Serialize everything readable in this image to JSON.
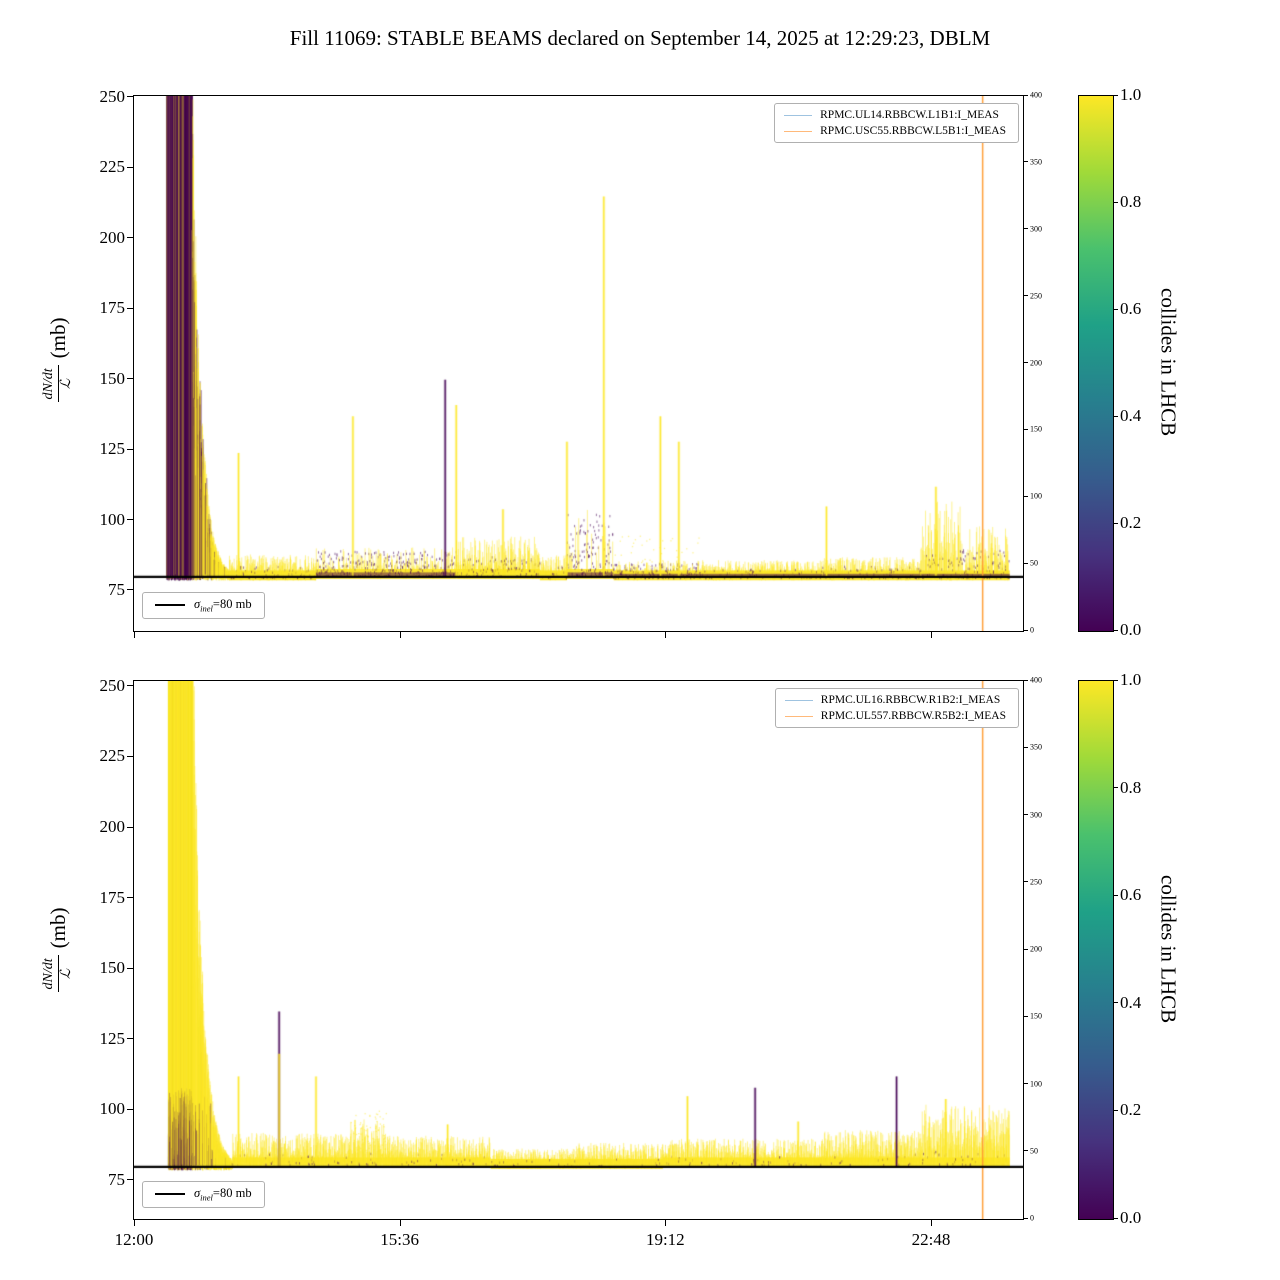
{
  "title": "Fill 11069: STABLE BEAMS declared on September 14, 2025 at 12:29:23, DBLM",
  "ylabel": {
    "numerator": "dN/dt",
    "denominator": "ℒ",
    "unit": "(mb)"
  },
  "colorbar": {
    "label": "collides in LHCB",
    "colormap_stops": [
      "#440154",
      "#46327e",
      "#365c8d",
      "#277f8e",
      "#1fa187",
      "#4ac16d",
      "#a0da39",
      "#fde725"
    ]
  },
  "panels": [
    {
      "legend": [
        {
          "label": "RPMC.UL14.RBBCW.L1B1:I_MEAS"
        },
        {
          "label": "RPMC.USC55.RBBCW.L5B1:I_MEAS"
        }
      ],
      "sigma_legend": {
        "symbol": "σ",
        "sub": "inel",
        "rest": "=80 mb"
      }
    },
    {
      "legend": [
        {
          "label": "RPMC.UL16.RBBCW.R1B2:I_MEAS"
        },
        {
          "label": "RPMC.UL557.RBBCW.R5B2:I_MEAS"
        }
      ],
      "sigma_legend": {
        "symbol": "σ",
        "sub": "inel",
        "rest": "=80 mb"
      }
    }
  ],
  "chart_data": [
    {
      "type": "scatter",
      "panel": "top",
      "x_axis": {
        "range_minutes": [
          0,
          722.8
        ],
        "tick_minutes": [
          0,
          216,
          432,
          648
        ],
        "tick_labels": [
          "12:00",
          "15:36",
          "19:12",
          "22:48"
        ]
      },
      "y_axis": {
        "label": "dN/dt / ℒ (mb)",
        "range": [
          60.8,
          250.7
        ],
        "tick_values": [
          75,
          100,
          125,
          150,
          175,
          200,
          225,
          250
        ]
      },
      "right_axis": {
        "range": [
          0,
          400
        ],
        "tick_values": [
          0,
          50,
          100,
          150,
          200,
          250,
          300,
          350,
          400
        ]
      },
      "color_scale": {
        "label": "collides in LHCB",
        "range": [
          0,
          1
        ],
        "tick_values": [
          0,
          0.2,
          0.4,
          0.6,
          0.8,
          1
        ],
        "colormap": "viridis"
      },
      "series": [
        {
          "name": "RPMC.UL14.RBBCW.L1B1:I_MEAS",
          "color": "#9fc3e0"
        },
        {
          "name": "RPMC.USC55.RBBCW.L5B1:I_MEAS",
          "color": "#ffb97a"
        }
      ],
      "reference_line": {
        "label": "σ_inel = 80 mb",
        "y_mb": 80
      },
      "event_line": {
        "minute": 690,
        "color": "#ff9b30"
      },
      "seed": 7,
      "colors": {
        "yellow": "#fde725",
        "purple": "#440154"
      },
      "segments": [
        {
          "kind": "burst",
          "m0": 27,
          "m1": 47,
          "base": 80,
          "amp": 200,
          "pAmp": 200,
          "pFrac": 0.85,
          "purpleTall": true,
          "dense": 7
        },
        {
          "kind": "decay",
          "m0": 47,
          "m1": 78,
          "base": 80,
          "amp": 195,
          "tau": 7,
          "pFrac": 0.7,
          "purpleTall": true,
          "dense": 4
        },
        {
          "kind": "band",
          "m0": 78,
          "m1": 148,
          "base": 80,
          "amp": 8,
          "pAmp": 4,
          "pFrac": 0.18
        },
        {
          "kind": "band",
          "m0": 148,
          "m1": 262,
          "base": 80.5,
          "amp": 10,
          "pAmp": 9,
          "pFrac": 0.6,
          "bd": true
        },
        {
          "kind": "band",
          "m0": 262,
          "m1": 330,
          "base": 80.5,
          "amp": 14,
          "pAmp": 7,
          "pFrac": 0.3
        },
        {
          "kind": "band",
          "m0": 330,
          "m1": 352,
          "base": 80,
          "amp": 8,
          "pAmp": 4,
          "pFrac": 0.15
        },
        {
          "kind": "band",
          "m0": 352,
          "m1": 390,
          "base": 80.5,
          "amp": 24,
          "pAmp": 22,
          "pFrac": 0.85,
          "bd": true
        },
        {
          "kind": "band",
          "m0": 390,
          "m1": 462,
          "base": 80,
          "amp": 6,
          "pAmp": 5,
          "pFrac": 0.4,
          "bd": true,
          "scatter": {
            "n": 40,
            "max": 95
          }
        },
        {
          "kind": "band",
          "m0": 462,
          "m1": 560,
          "base": 80,
          "amp": 6,
          "pAmp": 3,
          "pFrac": 0.15,
          "bd": true
        },
        {
          "kind": "band",
          "m0": 560,
          "m1": 640,
          "base": 80,
          "amp": 7,
          "pAmp": 4,
          "pFrac": 0.2,
          "bd": true
        },
        {
          "kind": "band",
          "m0": 640,
          "m1": 672,
          "base": 80,
          "amp": 27,
          "pAmp": 8,
          "pFrac": 0.3,
          "bd": true
        },
        {
          "kind": "band",
          "m0": 672,
          "m1": 712,
          "base": 80,
          "amp": 18,
          "pAmp": 10,
          "pFrac": 0.5,
          "bd": true
        }
      ],
      "spikes": [
        {
          "m": 85,
          "mb": 124,
          "c": "y"
        },
        {
          "m": 178,
          "mb": 137,
          "c": "y"
        },
        {
          "m": 253,
          "mb": 150,
          "c": "p"
        },
        {
          "m": 262,
          "mb": 141,
          "c": "y"
        },
        {
          "m": 300,
          "mb": 104,
          "c": "y"
        },
        {
          "m": 352,
          "mb": 128,
          "c": "y"
        },
        {
          "m": 382,
          "mb": 215,
          "c": "y"
        },
        {
          "m": 428,
          "mb": 137,
          "c": "y"
        },
        {
          "m": 443,
          "mb": 128,
          "c": "y"
        },
        {
          "m": 563,
          "mb": 105,
          "c": "y"
        },
        {
          "m": 652,
          "mb": 112,
          "c": "y"
        }
      ]
    },
    {
      "type": "scatter",
      "panel": "bottom",
      "x_axis": {
        "range_minutes": [
          0,
          722.8
        ],
        "tick_minutes": [
          0,
          216,
          432,
          648
        ],
        "tick_labels": [
          "12:00",
          "15:36",
          "19:12",
          "22:48"
        ]
      },
      "y_axis": {
        "label": "dN/dt / ℒ (mb)",
        "range": [
          61.5,
          252.1
        ],
        "tick_values": [
          75,
          100,
          125,
          150,
          175,
          200,
          225,
          250
        ]
      },
      "right_axis": {
        "range": [
          0,
          400
        ],
        "tick_values": [
          0,
          50,
          100,
          150,
          200,
          250,
          300,
          350,
          400
        ]
      },
      "color_scale": {
        "label": "collides in LHCB",
        "range": [
          0,
          1
        ],
        "tick_values": [
          0,
          0.2,
          0.4,
          0.6,
          0.8,
          1
        ],
        "colormap": "viridis"
      },
      "series": [
        {
          "name": "RPMC.UL16.RBBCW.R1B2:I_MEAS",
          "color": "#9fc3e0"
        },
        {
          "name": "RPMC.UL557.RBBCW.R5B2:I_MEAS",
          "color": "#ffb97a"
        }
      ],
      "reference_line": {
        "label": "σ_inel = 80 mb",
        "y_mb": 80
      },
      "event_line": {
        "minute": 690,
        "color": "#ff9b30"
      },
      "seed": 11,
      "colors": {
        "yellow": "#fde725",
        "purple": "#440154"
      },
      "segments": [
        {
          "kind": "burst",
          "m0": 28,
          "m1": 48,
          "base": 80,
          "amp": 200,
          "pAmp": 28,
          "pFrac": 0.5,
          "purpleTall": false,
          "dense": 7
        },
        {
          "kind": "decay",
          "m0": 48,
          "m1": 80,
          "base": 80,
          "amp": 195,
          "tau": 7.5,
          "pFrac": 0.35,
          "pAmp": 25,
          "purpleTall": false,
          "dense": 4
        },
        {
          "kind": "band",
          "m0": 80,
          "m1": 115,
          "base": 81,
          "amp": 11,
          "pAmp": 4,
          "pFrac": 0.08
        },
        {
          "kind": "band",
          "m0": 115,
          "m1": 175,
          "base": 81,
          "amp": 11,
          "pAmp": 4,
          "pFrac": 0.08
        },
        {
          "kind": "band",
          "m0": 175,
          "m1": 205,
          "base": 81,
          "amp": 16,
          "pAmp": 4,
          "pFrac": 0.07,
          "scatter": {
            "n": 60,
            "max": 100
          }
        },
        {
          "kind": "band",
          "m0": 205,
          "m1": 290,
          "base": 81,
          "amp": 10,
          "pAmp": 4,
          "pFrac": 0.06
        },
        {
          "kind": "band",
          "m0": 290,
          "m1": 360,
          "base": 80.5,
          "amp": 6,
          "pAmp": 3,
          "pFrac": 0.05
        },
        {
          "kind": "band",
          "m0": 360,
          "m1": 430,
          "base": 80.5,
          "amp": 8,
          "pAmp": 3,
          "pFrac": 0.05
        },
        {
          "kind": "band",
          "m0": 430,
          "m1": 560,
          "base": 81,
          "amp": 9,
          "pAmp": 3,
          "pFrac": 0.05
        },
        {
          "kind": "band",
          "m0": 560,
          "m1": 640,
          "base": 81,
          "amp": 12,
          "pAmp": 4,
          "pFrac": 0.06
        },
        {
          "kind": "band",
          "m0": 640,
          "m1": 712,
          "base": 81,
          "amp": 21,
          "pAmp": 5,
          "pFrac": 0.08
        }
      ],
      "spikes": [
        {
          "m": 85,
          "mb": 112,
          "c": "y"
        },
        {
          "m": 118,
          "mb": 135,
          "c": "p"
        },
        {
          "m": 118,
          "mb": 120,
          "c": "y"
        },
        {
          "m": 148,
          "mb": 112,
          "c": "y"
        },
        {
          "m": 255,
          "mb": 95,
          "c": "y"
        },
        {
          "m": 450,
          "mb": 105,
          "c": "y"
        },
        {
          "m": 505,
          "mb": 108,
          "c": "p"
        },
        {
          "m": 540,
          "mb": 96,
          "c": "y"
        },
        {
          "m": 620,
          "mb": 112,
          "c": "p"
        },
        {
          "m": 660,
          "mb": 104,
          "c": "y"
        }
      ]
    }
  ]
}
